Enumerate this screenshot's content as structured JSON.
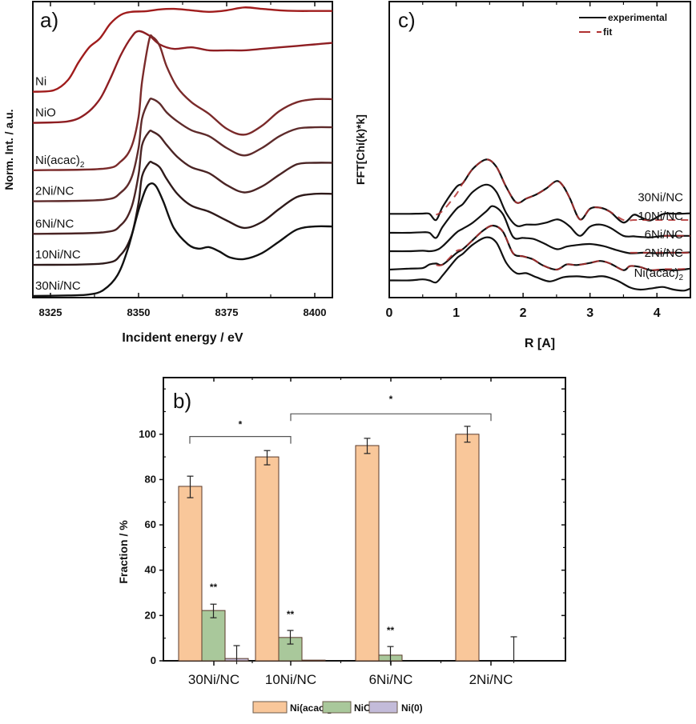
{
  "chart_data": [
    {
      "panel": "a)",
      "type": "line",
      "xlabel": "Incident energy / eV",
      "ylabel": "Norm. Int. / a.u.",
      "xlim": [
        8320,
        8405
      ],
      "xticks": [
        8325,
        8350,
        8375,
        8400
      ],
      "xtick_labels": [
        "8325",
        "8350",
        "8375",
        "8400"
      ],
      "ylim": [
        0,
        10
      ],
      "yticks_shown": false,
      "series": [
        {
          "name": "Ni",
          "color": "#a01c1c",
          "offset": 6.9,
          "x": [
            8320,
            8326,
            8330,
            8333,
            8336,
            8339,
            8342,
            8345,
            8348,
            8352,
            8356,
            8360,
            8365,
            8370,
            8375,
            8380,
            8385,
            8390,
            8395,
            8400,
            8405
          ],
          "y": [
            0,
            0.05,
            0.4,
            1.0,
            1.5,
            1.8,
            2.3,
            2.6,
            2.7,
            2.72,
            2.78,
            2.8,
            2.75,
            2.7,
            2.75,
            2.85,
            2.8,
            2.75,
            2.73,
            2.73,
            2.73
          ]
        },
        {
          "name": "NiO",
          "color": "#8e1e22",
          "offset": 5.85,
          "x": [
            8320,
            8330,
            8335,
            8339,
            8342,
            8345,
            8348,
            8350,
            8353,
            8356,
            8360,
            8365,
            8370,
            8375,
            8380,
            8385,
            8390,
            8395,
            8400,
            8405
          ],
          "y": [
            0,
            0.05,
            0.3,
            0.8,
            1.5,
            2.3,
            2.9,
            3.1,
            2.95,
            2.65,
            2.5,
            2.55,
            2.45,
            2.45,
            2.45,
            2.5,
            2.55,
            2.6,
            2.65,
            2.7
          ]
        },
        {
          "name": "Ni(acac)2",
          "color": "#7a2a2a",
          "offset": 4.25,
          "x": [
            8320,
            8340,
            8345,
            8348,
            8350,
            8351,
            8353,
            8354,
            8356,
            8358,
            8361,
            8365,
            8370,
            8375,
            8380,
            8385,
            8390,
            8395,
            8400,
            8405
          ],
          "y": [
            0,
            0.05,
            0.3,
            0.8,
            1.8,
            3.0,
            4.4,
            4.5,
            4.2,
            3.5,
            2.8,
            2.3,
            1.9,
            1.4,
            1.2,
            1.5,
            2.0,
            2.3,
            2.4,
            2.4
          ]
        },
        {
          "name": "2Ni/NC",
          "color": "#5e2b2b",
          "offset": 3.2,
          "x": [
            8320,
            8340,
            8345,
            8348,
            8350,
            8351,
            8353,
            8354,
            8356,
            8358,
            8361,
            8365,
            8370,
            8375,
            8380,
            8385,
            8390,
            8395,
            8400,
            8405
          ],
          "y": [
            0,
            0.05,
            0.3,
            0.8,
            1.8,
            2.8,
            3.4,
            3.45,
            3.3,
            3.0,
            2.7,
            2.4,
            2.2,
            1.8,
            1.55,
            1.8,
            2.2,
            2.45,
            2.5,
            2.5
          ]
        },
        {
          "name": "6Ni/NC",
          "color": "#4a2424",
          "offset": 2.1,
          "x": [
            8320,
            8340,
            8345,
            8348,
            8350,
            8351,
            8353,
            8354,
            8356,
            8358,
            8361,
            8365,
            8370,
            8375,
            8380,
            8385,
            8390,
            8395,
            8400,
            8405
          ],
          "y": [
            0,
            0.05,
            0.3,
            0.9,
            2.0,
            3.0,
            3.45,
            3.45,
            3.3,
            3.0,
            2.6,
            2.25,
            2.05,
            1.65,
            1.4,
            1.6,
            2.0,
            2.35,
            2.4,
            2.4
          ]
        },
        {
          "name": "10Ni/NC",
          "color": "#2e1a1a",
          "offset": 1.05,
          "x": [
            8320,
            8340,
            8345,
            8348,
            8350,
            8351,
            8353,
            8354,
            8356,
            8358,
            8361,
            8365,
            8370,
            8375,
            8380,
            8385,
            8390,
            8395,
            8400,
            8405
          ],
          "y": [
            0,
            0.05,
            0.35,
            1.0,
            2.1,
            3.0,
            3.45,
            3.45,
            3.3,
            2.9,
            2.4,
            2.0,
            1.8,
            1.5,
            1.25,
            1.45,
            1.9,
            2.3,
            2.4,
            2.4
          ]
        },
        {
          "name": "30Ni/NC",
          "color": "#111111",
          "offset": 0.0,
          "x": [
            8320,
            8330,
            8336,
            8340,
            8344,
            8347,
            8350,
            8352,
            8353.5,
            8355,
            8357,
            8360,
            8364,
            8367,
            8370,
            8373,
            8376,
            8380,
            8385,
            8390,
            8395,
            8400,
            8405
          ],
          "y": [
            0,
            0.02,
            0.05,
            0.2,
            0.7,
            1.6,
            2.9,
            3.6,
            3.8,
            3.7,
            3.2,
            2.3,
            1.75,
            1.6,
            1.65,
            1.5,
            1.3,
            1.25,
            1.45,
            1.85,
            2.25,
            2.35,
            2.35
          ]
        }
      ],
      "curve_labels": [
        "Ni",
        "NiO",
        "Ni(acac)",
        "2Ni/NC",
        "6Ni/NC",
        "10Ni/NC",
        "30Ni/NC"
      ],
      "subscript_label": "2"
    },
    {
      "panel": "c)",
      "type": "line",
      "xlabel": "R [A]",
      "ylabel": "FFT[Chi(k)*k]",
      "xlim": [
        0,
        4.5
      ],
      "xticks": [
        0,
        1,
        2,
        3,
        4
      ],
      "xtick_labels": [
        "0",
        "1",
        "2",
        "3",
        "4"
      ],
      "ylim": [
        0,
        10
      ],
      "yticks_shown": false,
      "legend": {
        "position": "top-right",
        "entries": [
          {
            "name": "experimental",
            "style": "solid",
            "color": "#111111"
          },
          {
            "name": "fit",
            "style": "dashed",
            "color": "#b03030"
          }
        ]
      },
      "series": [
        {
          "name": "30Ni/NC",
          "offset": 7.4,
          "has_fit": true,
          "x": [
            0,
            0.3,
            0.5,
            0.6,
            0.7,
            0.8,
            1.0,
            1.1,
            1.25,
            1.45,
            1.6,
            1.75,
            1.9,
            2.05,
            2.2,
            2.35,
            2.5,
            2.6,
            2.7,
            2.85,
            3.0,
            3.15,
            3.3,
            3.5,
            3.65,
            3.75,
            3.9,
            4.1,
            4.3,
            4.5
          ],
          "y": [
            0,
            0,
            0.02,
            0,
            -0.6,
            0.7,
            2.6,
            3.0,
            4.4,
            5.3,
            4.6,
            2.6,
            1.1,
            1.5,
            1.9,
            2.5,
            3.2,
            2.7,
            1.5,
            -0.55,
            0.5,
            0.6,
            0.2,
            -0.85,
            -0.1,
            -0.3,
            -0.65,
            0.0,
            0.0,
            0.05
          ],
          "fit_y": [
            null,
            null,
            null,
            null,
            -0.1,
            0.3,
            1.9,
            3.0,
            4.4,
            5.3,
            4.6,
            2.6,
            1.1,
            1.5,
            1.9,
            2.5,
            3.2,
            2.7,
            1.5,
            -0.55,
            0.5,
            0.6,
            0.2,
            -0.6,
            -0.6,
            -0.6,
            -0.6,
            -0.6,
            -0.6,
            -0.6
          ]
        },
        {
          "name": "10Ni/NC",
          "offset": 5.55,
          "has_fit": true,
          "x": [
            0,
            0.3,
            0.5,
            0.6,
            0.7,
            0.8,
            1.0,
            1.1,
            1.25,
            1.45,
            1.6,
            1.75,
            1.9,
            2.05,
            2.2,
            2.35,
            2.5,
            2.6,
            2.7,
            2.85,
            3.0,
            3.15,
            3.3,
            3.5,
            3.65,
            3.75,
            3.9,
            4.1,
            4.3,
            4.5
          ],
          "y": [
            0,
            0,
            0.05,
            0,
            -0.5,
            0.6,
            2.3,
            2.8,
            4.0,
            4.7,
            4.0,
            1.9,
            0.7,
            0.8,
            0.8,
            1.0,
            1.3,
            1.1,
            0.6,
            -0.3,
            0.6,
            0.8,
            0.5,
            -0.3,
            -0.35,
            -0.4,
            -0.45,
            -0.3,
            -0.3,
            -0.3
          ],
          "fit_y": [
            null,
            null,
            null,
            null,
            null,
            null,
            null,
            null,
            null,
            null,
            null,
            null,
            null,
            null,
            null,
            null,
            null,
            null,
            null,
            null,
            null,
            null,
            null,
            null,
            null,
            null,
            null,
            -0.3,
            -0.3,
            -0.3
          ]
        },
        {
          "name": "6Ni/NC",
          "offset": 3.75,
          "has_fit": true,
          "x": [
            0,
            0.3,
            0.5,
            0.6,
            0.7,
            0.8,
            1.0,
            1.1,
            1.25,
            1.45,
            1.55,
            1.7,
            1.85,
            2.0,
            2.15,
            2.3,
            2.5,
            2.65,
            2.8,
            3.0,
            3.2,
            3.4,
            3.6,
            3.8,
            4.0,
            4.2,
            4.4,
            4.5
          ],
          "y": [
            0,
            0,
            0.05,
            0,
            0.1,
            0.5,
            1.8,
            2.2,
            2.8,
            3.9,
            4.4,
            3.6,
            1.4,
            1.3,
            1.2,
            0.8,
            0.2,
            0.45,
            0.6,
            0.7,
            0.5,
            0.1,
            -0.2,
            -0.15,
            -0.2,
            -0.15,
            -0.15,
            -0.1
          ],
          "fit_y": [
            null,
            null,
            null,
            null,
            null,
            null,
            null,
            null,
            null,
            null,
            null,
            null,
            null,
            null,
            null,
            null,
            null,
            null,
            null,
            null,
            null,
            null,
            -0.15,
            -0.15,
            -0.15,
            -0.15,
            -0.15,
            -0.15
          ]
        },
        {
          "name": "2Ni/NC",
          "offset": 1.95,
          "has_fit": true,
          "x": [
            0,
            0.3,
            0.5,
            0.6,
            0.7,
            0.8,
            1.0,
            1.1,
            1.25,
            1.4,
            1.55,
            1.7,
            1.85,
            2.0,
            2.15,
            2.3,
            2.5,
            2.65,
            2.8,
            3.0,
            3.15,
            3.3,
            3.5,
            3.6,
            3.75,
            3.9,
            4.1,
            4.3,
            4.5
          ],
          "y": [
            0,
            0.1,
            0.15,
            0.5,
            0.6,
            0.5,
            1.6,
            2.0,
            2.9,
            3.8,
            4.3,
            3.7,
            1.6,
            1.3,
            1.0,
            0.4,
            0.0,
            0.5,
            0.45,
            0.65,
            0.85,
            0.6,
            -0.05,
            0.35,
            0.25,
            -0.05,
            0.0,
            -0.05,
            0.1
          ],
          "fit_y": [
            null,
            null,
            null,
            null,
            0.45,
            0.5,
            1.8,
            2.0,
            2.9,
            3.8,
            4.3,
            3.7,
            1.6,
            1.3,
            1.0,
            0.4,
            0.0,
            0.5,
            0.45,
            0.65,
            0.85,
            0.6,
            -0.05,
            0.35,
            0.25,
            -0.05,
            0.05,
            0.05,
            0.1
          ]
        },
        {
          "name": "Ni(acac)2",
          "offset": 0.0,
          "has_fit": false,
          "x": [
            0,
            0.3,
            0.5,
            0.6,
            0.7,
            0.8,
            1.0,
            1.1,
            1.25,
            1.45,
            1.6,
            1.75,
            1.9,
            2.05,
            2.2,
            2.4,
            2.6,
            2.8,
            3.0,
            3.2,
            3.4,
            3.6,
            3.75,
            3.9,
            4.0,
            4.1,
            4.25,
            4.4,
            4.5
          ],
          "y": [
            0.9,
            0.9,
            1.0,
            0.9,
            0.7,
            1.4,
            3.0,
            3.5,
            4.4,
            5.1,
            4.6,
            2.6,
            1.6,
            1.6,
            1.2,
            0.8,
            1.2,
            1.3,
            1.2,
            1.3,
            0.9,
            0.2,
            0.0,
            0.1,
            0.2,
            0.25,
            0.0,
            -0.1,
            0.1
          ]
        }
      ],
      "curve_labels": [
        "30Ni/NC",
        "10Ni/NC",
        "6Ni/NC",
        "2Ni/NC",
        "Ni(acac)"
      ],
      "subscript_label": "2"
    },
    {
      "panel": "b)",
      "type": "bar",
      "xlabel": "",
      "ylabel": "Fraction / %",
      "ylim": [
        0,
        125
      ],
      "yticks": [
        0,
        20,
        40,
        60,
        80,
        100
      ],
      "categories": [
        "30Ni/NC",
        "10Ni/NC",
        "6Ni/NC",
        "2Ni/NC"
      ],
      "series": [
        {
          "name": "Ni(acac)",
          "subscript": "2",
          "color": "#f9c79a",
          "values": [
            77,
            90,
            95,
            100
          ],
          "err_low": [
            72,
            86.5,
            91.5,
            96.5
          ],
          "err_high": [
            81.5,
            92.8,
            98.2,
            103.5
          ]
        },
        {
          "name": "NiO",
          "color": "#a9c89b",
          "values": [
            22.2,
            10.3,
            2.5,
            0
          ],
          "err_low": [
            19,
            7.4,
            -1.5,
            null
          ],
          "err_high": [
            25,
            13.4,
            6.3,
            null
          ]
        },
        {
          "name": "Ni(0)",
          "color": "#c3bbd9",
          "values": [
            1.0,
            0.3,
            0,
            0
          ],
          "err_low": [
            -1.5,
            null,
            null,
            -1.0
          ],
          "err_high": [
            6.7,
            null,
            null,
            10.6
          ]
        }
      ],
      "annotations": [
        {
          "text": "**",
          "category": 0,
          "series": 1,
          "y": 31
        },
        {
          "text": "**",
          "category": 1,
          "series": 1,
          "y": 19
        },
        {
          "text": "**",
          "category": 2,
          "series": 1,
          "y": 12
        },
        {
          "text": "*",
          "from_category": 0,
          "to_category": 1,
          "bracket_y": 99,
          "text_y": 103
        },
        {
          "text": "*",
          "from_category": 1,
          "to_category": 3,
          "bracket_y": 109,
          "text_y": 114
        }
      ],
      "legend": {
        "position": "bottom",
        "entries": [
          "Ni(acac)",
          "NiO",
          "Ni(0)"
        ],
        "subscript_first": "2"
      }
    }
  ]
}
